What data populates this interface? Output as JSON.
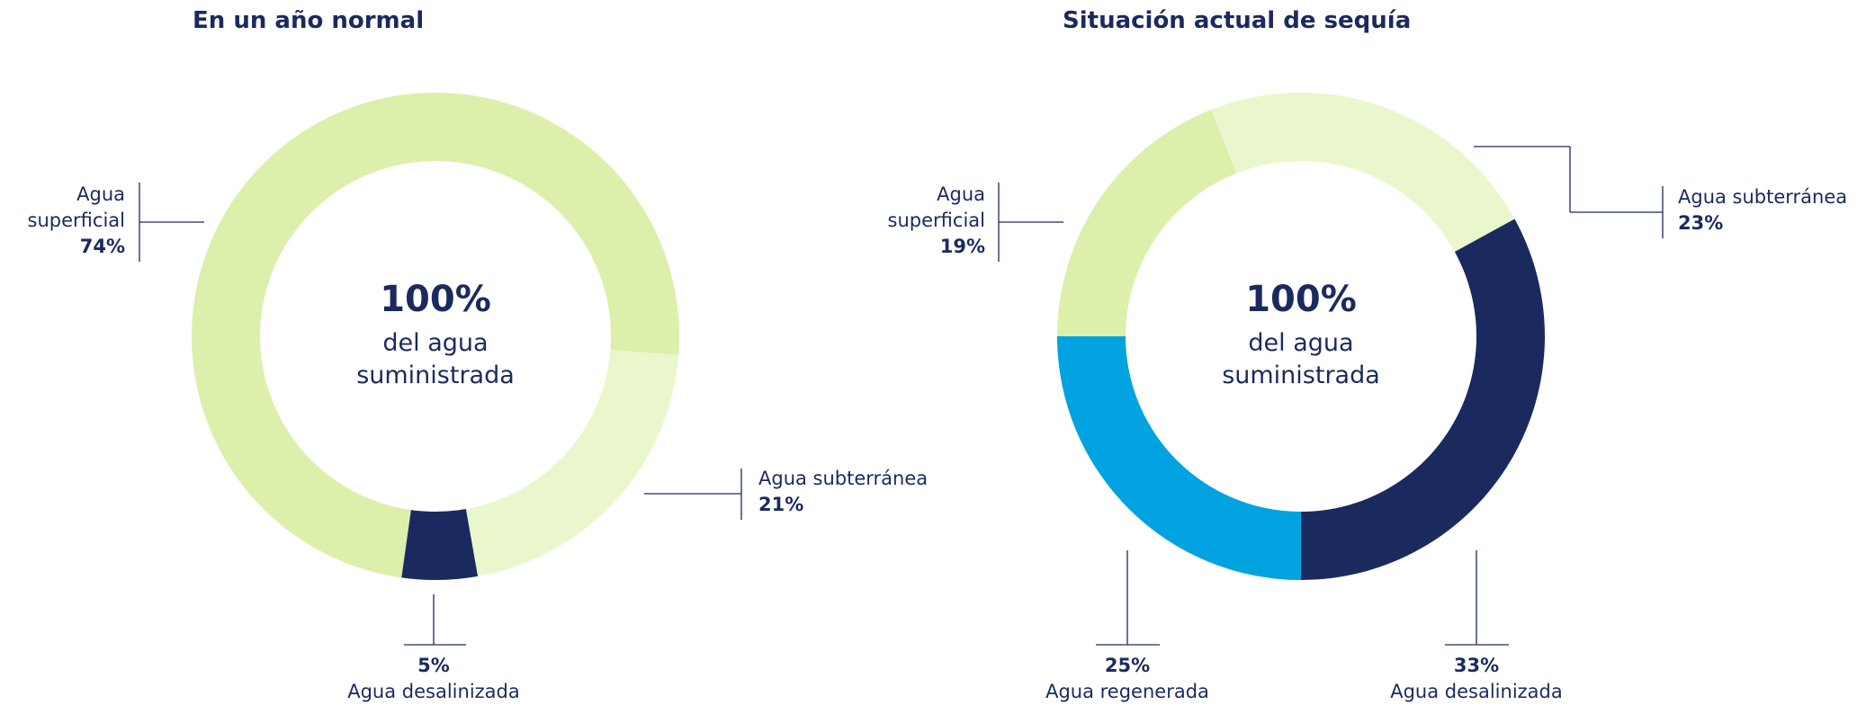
{
  "chart_data": [
    {
      "type": "donut",
      "title": "En un año normal",
      "center_value": "100%",
      "center_text": [
        "del agua",
        "suministrada"
      ],
      "categories": [
        "Agua superficial",
        "Agua subterránea",
        "Agua desalinizada"
      ],
      "values": [
        74,
        21,
        5
      ],
      "value_labels": [
        "74%",
        "21%",
        "5%"
      ],
      "colors": [
        "#dcefab",
        "#eaf7cc",
        "#1b2a5e"
      ]
    },
    {
      "type": "donut",
      "title": "Situación actual de sequía",
      "center_value": "100%",
      "center_text": [
        "del agua",
        "suministrada"
      ],
      "categories": [
        "Agua superficial",
        "Agua subterránea",
        "Agua desalinizada",
        "Agua regenerada"
      ],
      "values": [
        19,
        23,
        33,
        25
      ],
      "value_labels": [
        "19%",
        "23%",
        "33%",
        "25%"
      ],
      "colors": [
        "#dcefab",
        "#eaf7cc",
        "#1b2a5e",
        "#00a3e0"
      ]
    }
  ]
}
